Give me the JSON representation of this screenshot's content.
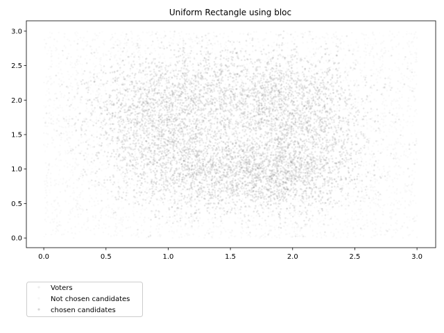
{
  "chart_data": {
    "type": "scatter",
    "title": "Uniform Rectangle using bloc",
    "xlabel": "",
    "ylabel": "",
    "xlim": [
      -0.14,
      3.15
    ],
    "ylim": [
      -0.14,
      3.15
    ],
    "xticks": [
      0.0,
      0.5,
      1.0,
      1.5,
      2.0,
      2.5,
      3.0
    ],
    "xtick_labels": [
      "0.0",
      "0.5",
      "1.0",
      "1.5",
      "2.0",
      "2.5",
      "3.0"
    ],
    "yticks": [
      0.0,
      0.5,
      1.0,
      1.5,
      2.0,
      2.5,
      3.0
    ],
    "ytick_labels": [
      "0.0",
      "0.5",
      "1.0",
      "1.5",
      "2.0",
      "2.5",
      "3.0"
    ],
    "grid": false,
    "legend_position": "below-left",
    "series": [
      {
        "name": "Voters",
        "distribution": "uniform",
        "x_range": [
          0.0,
          3.0
        ],
        "y_range": [
          0.0,
          3.0
        ],
        "count": 3500,
        "color": "#cccccc",
        "opacity": 0.12
      },
      {
        "name": "Not chosen candidates",
        "distribution": "uniform",
        "x_range": [
          0.0,
          3.0
        ],
        "y_range": [
          0.0,
          3.0
        ],
        "count": 1200,
        "color": "#cccccc",
        "opacity": 0.06
      },
      {
        "name": "chosen candidates",
        "distribution": "bloc-clusters",
        "clusters": [
          {
            "cx": 0.95,
            "cy": 1.75,
            "sx": 0.32,
            "sy": 0.45,
            "weight": 1.0
          },
          {
            "cx": 2.0,
            "cy": 1.75,
            "sx": 0.32,
            "sy": 0.45,
            "weight": 1.0
          },
          {
            "cx": 1.25,
            "cy": 0.95,
            "sx": 0.35,
            "sy": 0.3,
            "weight": 0.8
          },
          {
            "cx": 1.95,
            "cy": 0.9,
            "sx": 0.3,
            "sy": 0.28,
            "weight": 0.8
          },
          {
            "cx": 1.5,
            "cy": 2.15,
            "sx": 0.45,
            "sy": 0.35,
            "weight": 0.7
          }
        ],
        "count": 6500,
        "color": "#888888",
        "opacity": 0.18
      }
    ]
  }
}
